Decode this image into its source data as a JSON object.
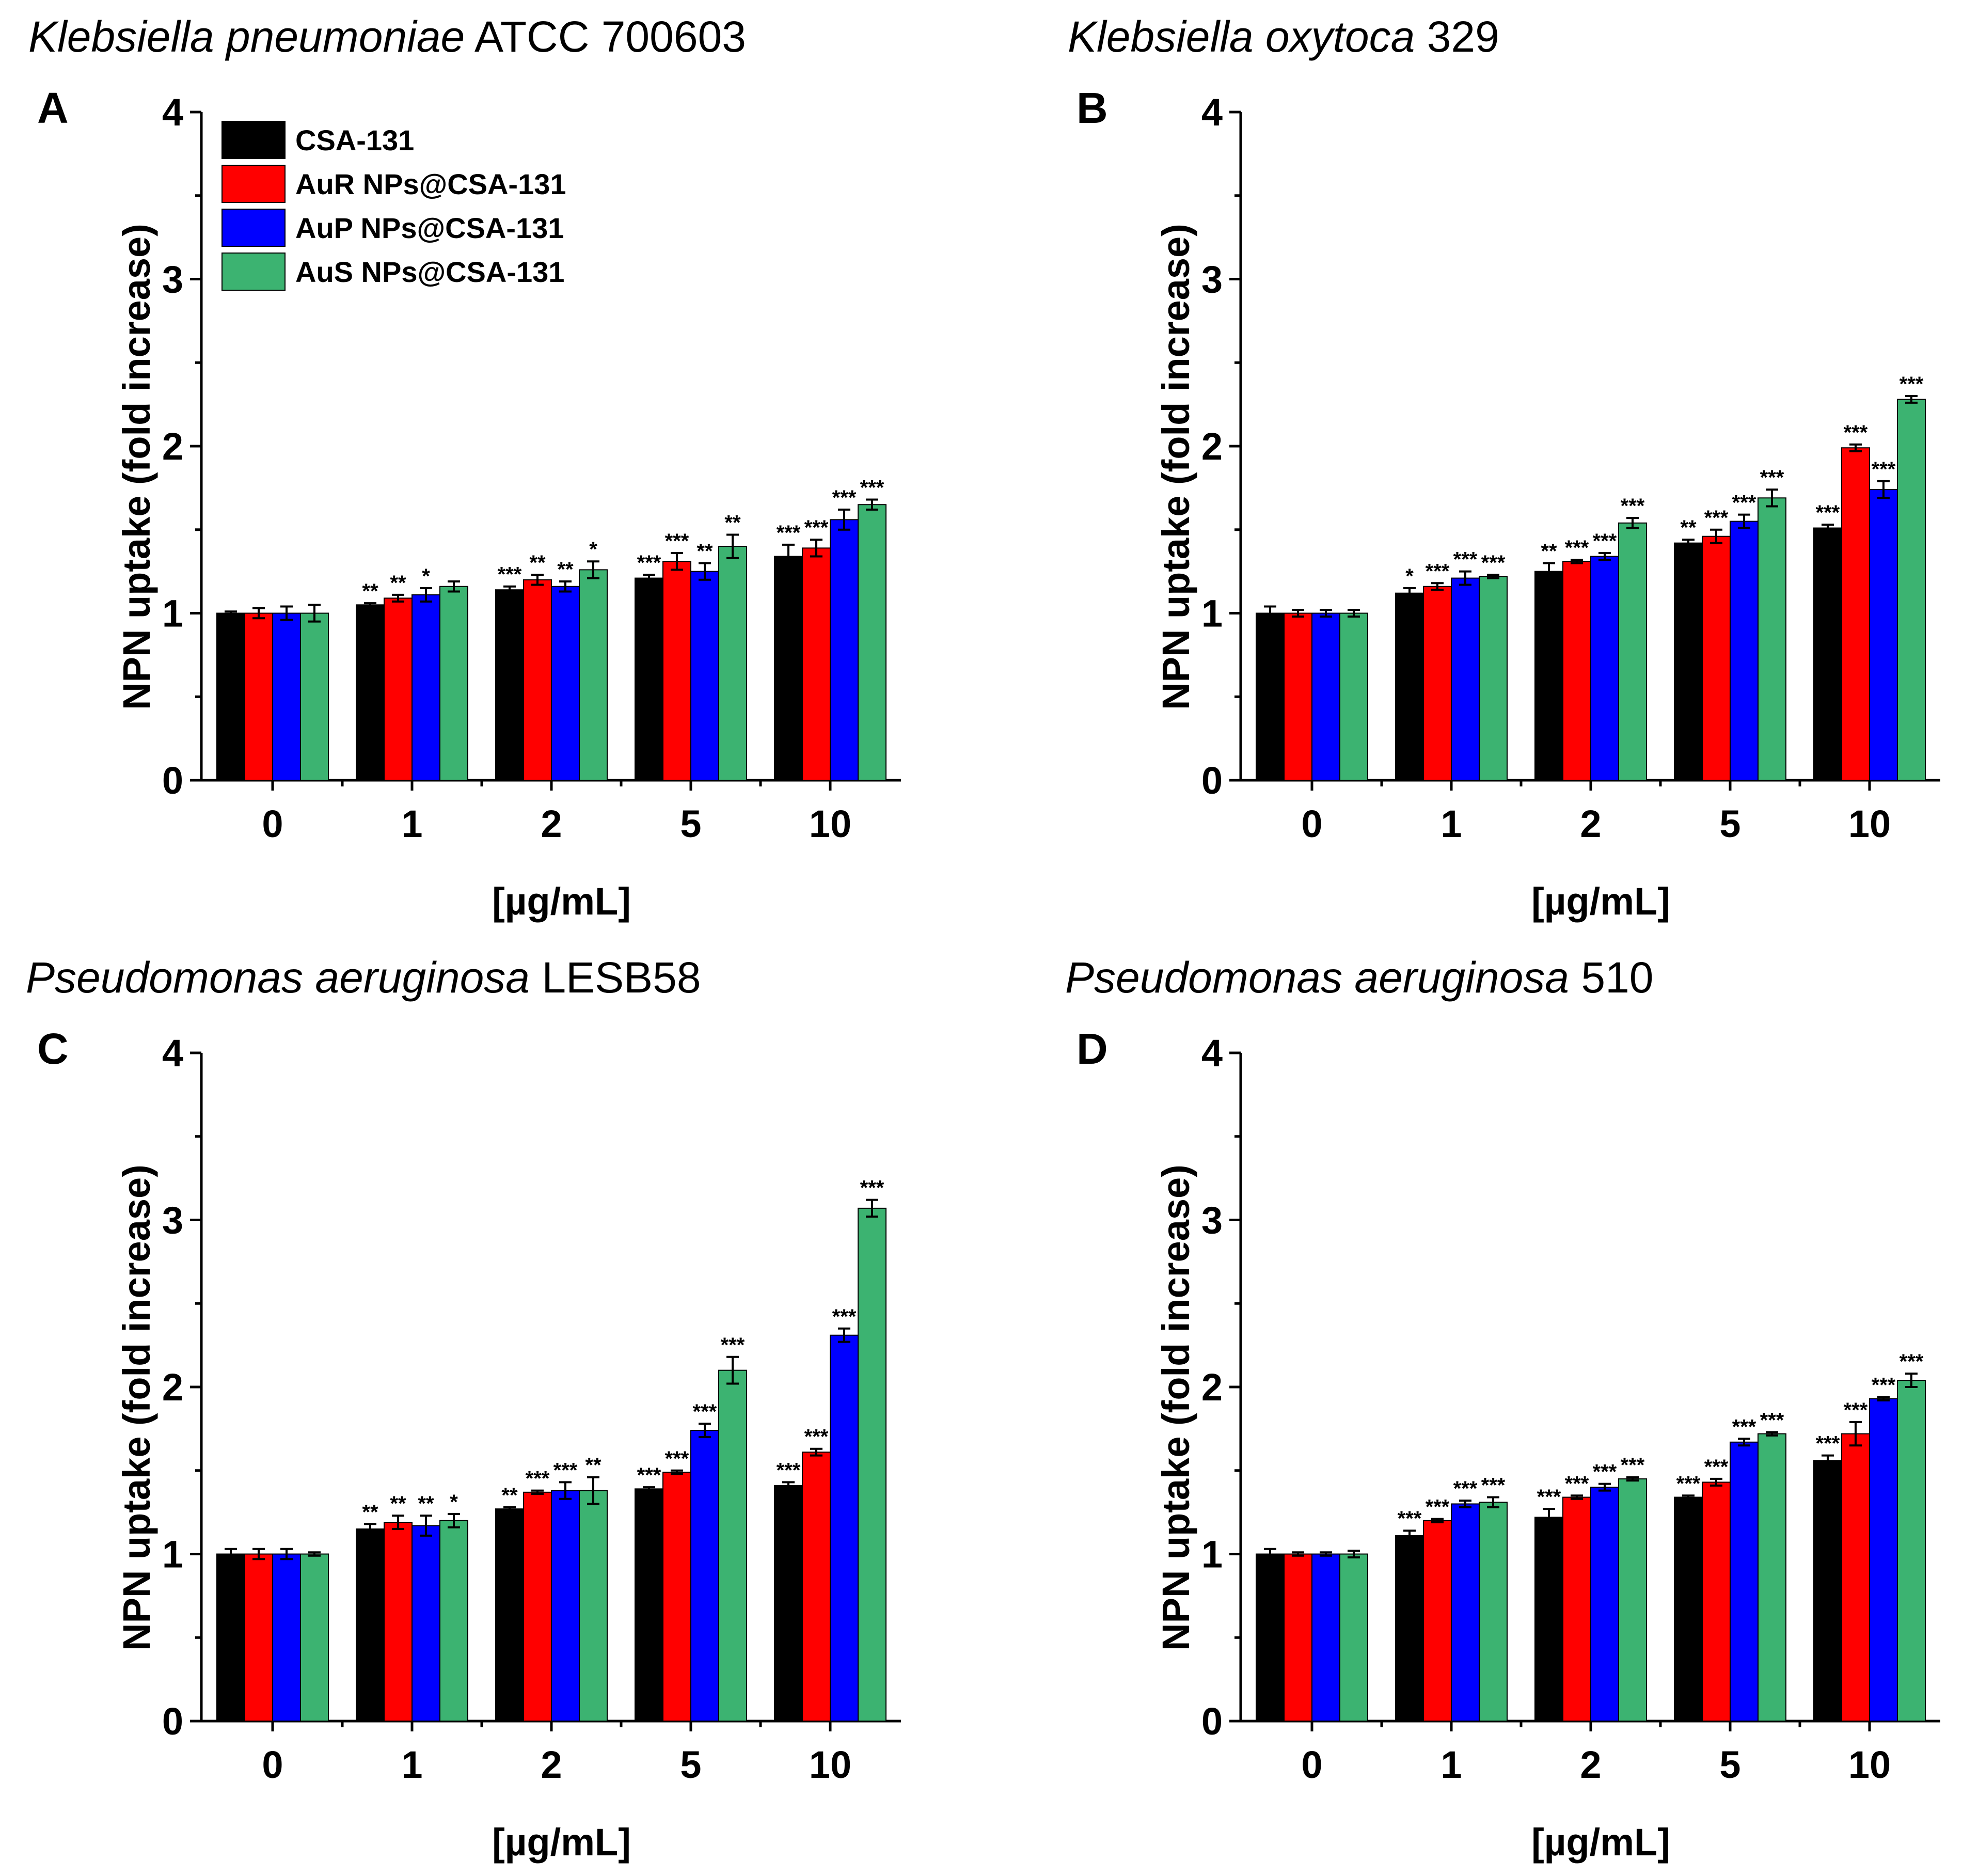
{
  "colors": {
    "CSA-131": "#000000",
    "AuR": "#ff0000",
    "AuP": "#0000ff",
    "AuS": "#3cb371"
  },
  "legend": [
    "CSA-131",
    "AuR NPs@CSA-131",
    "AuP NPs@CSA-131",
    "AuS NPs@CSA-131"
  ],
  "chart_data": [
    {
      "type": "bar",
      "panel": "A",
      "title_italic": "Klebsiella pneumoniae",
      "title_rest": " ATCC 700603",
      "categories": [
        "0",
        "1",
        "2",
        "5",
        "10"
      ],
      "xlabel": "[µg/mL]",
      "ylabel": "NPN uptake (fold increase)",
      "ylim": [
        0,
        4
      ],
      "yticks": [
        "0",
        "1",
        "2",
        "3",
        "4"
      ],
      "series": [
        {
          "name": "CSA-131",
          "values": [
            1.0,
            1.05,
            1.14,
            1.21,
            1.34
          ],
          "errors": [
            0.01,
            0.01,
            0.02,
            0.02,
            0.07
          ],
          "sig": [
            "",
            "**",
            "***",
            "***",
            "***"
          ]
        },
        {
          "name": "AuR NPs@CSA-131",
          "values": [
            1.0,
            1.09,
            1.2,
            1.31,
            1.39
          ],
          "errors": [
            0.03,
            0.02,
            0.03,
            0.05,
            0.05
          ],
          "sig": [
            "",
            "**",
            "**",
            "***",
            "***"
          ]
        },
        {
          "name": "AuP NPs@CSA-131",
          "values": [
            1.0,
            1.11,
            1.16,
            1.25,
            1.56
          ],
          "errors": [
            0.04,
            0.04,
            0.03,
            0.05,
            0.06
          ],
          "sig": [
            "",
            "*",
            "**",
            "**",
            "***"
          ]
        },
        {
          "name": "AuS NPs@CSA-131",
          "values": [
            1.0,
            1.16,
            1.26,
            1.4,
            1.65
          ],
          "errors": [
            0.05,
            0.03,
            0.05,
            0.07,
            0.03
          ],
          "sig": [
            "",
            "",
            "*",
            "**",
            "***"
          ]
        }
      ]
    },
    {
      "type": "bar",
      "panel": "B",
      "title_italic": "Klebsiella oxytoca",
      "title_rest": " 329",
      "categories": [
        "0",
        "1",
        "2",
        "5",
        "10"
      ],
      "xlabel": "[µg/mL]",
      "ylabel": "NPN uptake (fold increase)",
      "ylim": [
        0,
        4
      ],
      "yticks": [
        "0",
        "1",
        "2",
        "3",
        "4"
      ],
      "series": [
        {
          "name": "CSA-131",
          "values": [
            1.0,
            1.12,
            1.25,
            1.42,
            1.51
          ],
          "errors": [
            0.04,
            0.03,
            0.05,
            0.02,
            0.02
          ],
          "sig": [
            "",
            "*",
            "**",
            "**",
            "***"
          ]
        },
        {
          "name": "AuR NPs@CSA-131",
          "values": [
            1.0,
            1.16,
            1.31,
            1.46,
            1.99
          ],
          "errors": [
            0.02,
            0.02,
            0.01,
            0.04,
            0.02
          ],
          "sig": [
            "",
            "***",
            "***",
            "***",
            "***"
          ]
        },
        {
          "name": "AuP NPs@CSA-131",
          "values": [
            1.0,
            1.21,
            1.34,
            1.55,
            1.74
          ],
          "errors": [
            0.02,
            0.04,
            0.02,
            0.04,
            0.05
          ],
          "sig": [
            "",
            "***",
            "***",
            "***",
            "***"
          ]
        },
        {
          "name": "AuS NPs@CSA-131",
          "values": [
            1.0,
            1.22,
            1.54,
            1.69,
            2.28
          ],
          "errors": [
            0.02,
            0.01,
            0.03,
            0.05,
            0.02
          ],
          "sig": [
            "",
            "***",
            "***",
            "***",
            "***"
          ]
        }
      ]
    },
    {
      "type": "bar",
      "panel": "C",
      "title_italic": "Pseudomonas aeruginosa",
      "title_rest": " LESB58",
      "categories": [
        "0",
        "1",
        "2",
        "5",
        "10"
      ],
      "xlabel": "[µg/mL]",
      "ylabel": "NPN uptake (fold increase)",
      "ylim": [
        0,
        4
      ],
      "yticks": [
        "0",
        "1",
        "2",
        "3",
        "4"
      ],
      "series": [
        {
          "name": "CSA-131",
          "values": [
            1.0,
            1.15,
            1.27,
            1.39,
            1.41
          ],
          "errors": [
            0.03,
            0.03,
            0.01,
            0.01,
            0.02
          ],
          "sig": [
            "",
            "**",
            "**",
            "***",
            "***"
          ]
        },
        {
          "name": "AuR NPs@CSA-131",
          "values": [
            1.0,
            1.19,
            1.37,
            1.49,
            1.61
          ],
          "errors": [
            0.03,
            0.04,
            0.01,
            0.01,
            0.02
          ],
          "sig": [
            "",
            "**",
            "***",
            "***",
            "***"
          ]
        },
        {
          "name": "AuP NPs@CSA-131",
          "values": [
            1.0,
            1.17,
            1.38,
            1.74,
            2.31
          ],
          "errors": [
            0.03,
            0.06,
            0.05,
            0.04,
            0.04
          ],
          "sig": [
            "",
            "**",
            "***",
            "***",
            "***"
          ]
        },
        {
          "name": "AuS NPs@CSA-131",
          "values": [
            1.0,
            1.2,
            1.38,
            2.1,
            3.07
          ],
          "errors": [
            0.01,
            0.04,
            0.08,
            0.08,
            0.05
          ],
          "sig": [
            "",
            "*",
            "**",
            "***",
            "***"
          ]
        }
      ]
    },
    {
      "type": "bar",
      "panel": "D",
      "title_italic": "Pseudomonas aeruginosa",
      "title_rest": " 510",
      "categories": [
        "0",
        "1",
        "2",
        "5",
        "10"
      ],
      "xlabel": "[µg/mL]",
      "ylabel": "NPN uptake (fold increase)",
      "ylim": [
        0,
        4
      ],
      "yticks": [
        "0",
        "1",
        "2",
        "3",
        "4"
      ],
      "series": [
        {
          "name": "CSA-131",
          "values": [
            1.0,
            1.11,
            1.22,
            1.34,
            1.56
          ],
          "errors": [
            0.03,
            0.03,
            0.05,
            0.01,
            0.03
          ],
          "sig": [
            "",
            "***",
            "***",
            "***",
            "***"
          ]
        },
        {
          "name": "AuR NPs@CSA-131",
          "values": [
            1.0,
            1.2,
            1.34,
            1.43,
            1.72
          ],
          "errors": [
            0.01,
            0.01,
            0.01,
            0.02,
            0.07
          ],
          "sig": [
            "",
            "***",
            "***",
            "***",
            "***"
          ]
        },
        {
          "name": "AuP NPs@CSA-131",
          "values": [
            1.0,
            1.3,
            1.4,
            1.67,
            1.93
          ],
          "errors": [
            0.01,
            0.02,
            0.02,
            0.02,
            0.01
          ],
          "sig": [
            "",
            "***",
            "***",
            "***",
            "***"
          ]
        },
        {
          "name": "AuS NPs@CSA-131",
          "values": [
            1.0,
            1.31,
            1.45,
            1.72,
            2.04
          ],
          "errors": [
            0.02,
            0.03,
            0.01,
            0.01,
            0.04
          ],
          "sig": [
            "",
            "***",
            "***",
            "***",
            "***"
          ]
        }
      ]
    }
  ]
}
